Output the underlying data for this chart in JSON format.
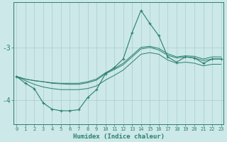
{
  "x": [
    0,
    1,
    2,
    3,
    4,
    5,
    6,
    7,
    8,
    9,
    10,
    11,
    12,
    13,
    14,
    15,
    16,
    17,
    18,
    19,
    20,
    21,
    22,
    23
  ],
  "y_jagged": [
    -3.55,
    -3.68,
    -3.78,
    -4.05,
    -4.17,
    -4.2,
    -4.2,
    -4.18,
    -3.95,
    -3.8,
    -3.5,
    -3.38,
    -3.22,
    -2.72,
    -2.3,
    -2.55,
    -2.78,
    -3.18,
    -3.28,
    -3.18,
    -3.2,
    -3.3,
    -3.22,
    -3.22
  ],
  "y_upper1": [
    -3.55,
    -3.6,
    -3.63,
    -3.65,
    -3.67,
    -3.68,
    -3.68,
    -3.68,
    -3.65,
    -3.6,
    -3.48,
    -3.4,
    -3.3,
    -3.15,
    -3.0,
    -2.98,
    -3.02,
    -3.12,
    -3.18,
    -3.16,
    -3.17,
    -3.22,
    -3.18,
    -3.18
  ],
  "y_upper2": [
    -3.55,
    -3.6,
    -3.63,
    -3.65,
    -3.68,
    -3.69,
    -3.7,
    -3.7,
    -3.67,
    -3.62,
    -3.5,
    -3.42,
    -3.33,
    -3.18,
    -3.03,
    -3.0,
    -3.05,
    -3.15,
    -3.2,
    -3.18,
    -3.2,
    -3.25,
    -3.22,
    -3.22
  ],
  "y_lower": [
    -3.55,
    -3.63,
    -3.7,
    -3.75,
    -3.78,
    -3.8,
    -3.8,
    -3.8,
    -3.78,
    -3.73,
    -3.62,
    -3.53,
    -3.43,
    -3.28,
    -3.13,
    -3.1,
    -3.13,
    -3.24,
    -3.3,
    -3.28,
    -3.3,
    -3.35,
    -3.32,
    -3.32
  ],
  "line_color": "#2a7f6f",
  "bg_color": "#cce8e8",
  "grid_color": "#aacece",
  "xlabel": "Humidex (Indice chaleur)",
  "yticks": [
    -4,
    -3
  ],
  "ylim": [
    -4.45,
    -2.15
  ],
  "xlim": [
    -0.3,
    23.3
  ]
}
